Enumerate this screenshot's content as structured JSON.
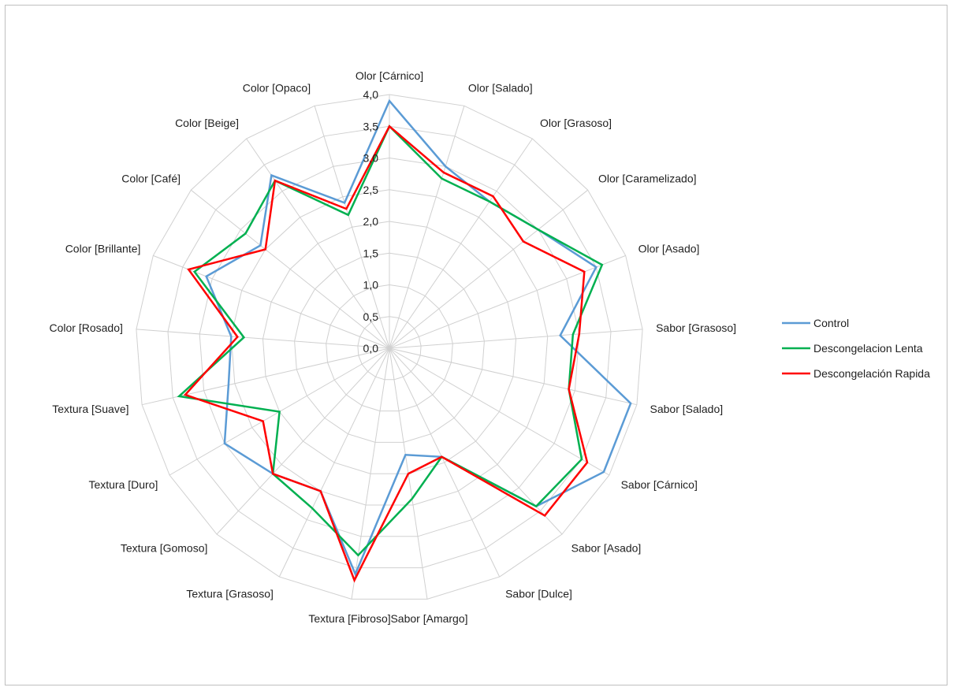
{
  "chart_data": {
    "type": "radar",
    "title": "",
    "rmax": 4.0,
    "tick_step": 0.5,
    "tick_labels": [
      "0,0",
      "0,5",
      "1,0",
      "1,5",
      "2,0",
      "2,5",
      "3,0",
      "3,5",
      "4,0"
    ],
    "categories": [
      "Olor [Cárnico]",
      "Olor [Salado]",
      "Olor [Grasoso]",
      "Olor [Caramelizado]",
      "Olor [Asado]",
      "Sabor [Grasoso]",
      "Sabor [Salado]",
      "Sabor [Cárnico]",
      "Sabor [Asado]",
      "Sabor [Dulce]",
      "Sabor [Amargo]",
      "Textura [Fibroso]",
      "Textura [Grasoso]",
      "Textura [Gomoso]",
      "Textura [Duro]",
      "Textura [Suave]",
      "Color [Rosado]",
      "Color [Brillante]",
      "Color [Café]",
      "Color [Beige]",
      "Color [Opaco]"
    ],
    "series": [
      {
        "name": "Control",
        "color": "#5b9bd5",
        "values": [
          3.9,
          3.0,
          2.8,
          3.0,
          3.5,
          2.7,
          3.9,
          3.9,
          3.4,
          1.9,
          1.7,
          3.6,
          2.5,
          2.7,
          3.0,
          2.6,
          2.5,
          3.1,
          2.6,
          3.3,
          2.4
        ]
      },
      {
        "name": "Descongelacion Lenta",
        "color": "#00b050",
        "values": [
          3.5,
          2.8,
          2.8,
          3.0,
          3.6,
          2.9,
          2.9,
          3.5,
          3.4,
          1.9,
          2.4,
          3.3,
          2.8,
          2.7,
          2.0,
          3.4,
          2.3,
          3.3,
          2.9,
          3.2,
          2.2
        ]
      },
      {
        "name": "Descongelación Rapida",
        "color": "#ff0000",
        "values": [
          3.5,
          2.9,
          2.9,
          2.7,
          3.3,
          3.0,
          2.9,
          3.6,
          3.6,
          1.9,
          2.0,
          3.7,
          2.5,
          2.7,
          2.3,
          3.3,
          2.4,
          3.4,
          2.5,
          3.2,
          2.3
        ]
      }
    ],
    "legend_position": "right",
    "grid": true
  }
}
